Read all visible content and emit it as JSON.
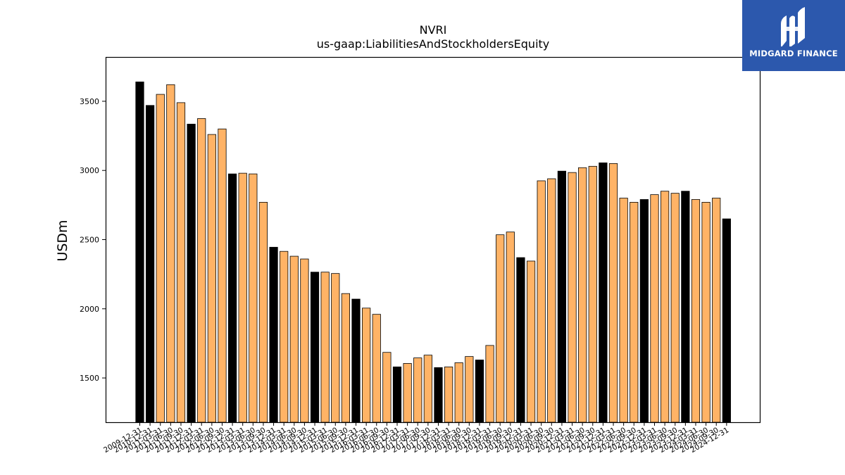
{
  "brand": {
    "name": "MIDGARD FINANCE",
    "bg": "#2c58ad"
  },
  "chart_data": {
    "type": "bar",
    "title": "NVRI",
    "subtitle": "us-gaap:LiabilitiesAndStockholdersEquity",
    "xlabel": "",
    "ylabel": "USDm",
    "ylim": [
      1180,
      3820
    ],
    "yticks": [
      1500,
      2000,
      2500,
      3000,
      3500
    ],
    "grid": false,
    "colors": {
      "annual": "#000000",
      "quarterly": "#ffb366",
      "edge": "#000000"
    },
    "categories": [
      "2009-12-31",
      "2010-12-31",
      "2011-03-31",
      "2011-06-30",
      "2011-09-30",
      "2011-12-31",
      "2012-03-31",
      "2012-06-30",
      "2012-09-30",
      "2012-12-31",
      "2013-03-31",
      "2013-06-30",
      "2013-09-30",
      "2013-12-31",
      "2014-03-31",
      "2014-06-30",
      "2014-09-30",
      "2014-12-31",
      "2015-03-31",
      "2015-06-30",
      "2015-09-30",
      "2015-12-31",
      "2016-03-31",
      "2016-06-30",
      "2016-09-30",
      "2016-12-31",
      "2017-03-31",
      "2017-06-30",
      "2017-09-30",
      "2017-12-31",
      "2018-03-31",
      "2018-06-30",
      "2018-09-30",
      "2018-12-31",
      "2019-03-31",
      "2019-06-30",
      "2019-09-30",
      "2019-12-31",
      "2020-03-31",
      "2020-06-30",
      "2020-09-30",
      "2020-12-31",
      "2021-03-31",
      "2021-06-30",
      "2021-09-30",
      "2021-12-31",
      "2022-03-31",
      "2022-06-30",
      "2022-09-30",
      "2022-12-31",
      "2023-03-31",
      "2023-06-30",
      "2023-09-30",
      "2023-12-31",
      "2024-03-31",
      "2024-06-30",
      "2024-09-30",
      "2024-12-31"
    ],
    "values": [
      3640,
      3470,
      3550,
      3620,
      3490,
      3335,
      3375,
      3260,
      3300,
      2975,
      2980,
      2975,
      2770,
      2445,
      2415,
      2380,
      2360,
      2265,
      2265,
      2255,
      2110,
      2070,
      2005,
      1960,
      1685,
      1580,
      1605,
      1645,
      1665,
      1575,
      1580,
      1610,
      1655,
      1630,
      1735,
      2535,
      2555,
      2370,
      2345,
      2925,
      2940,
      2995,
      2985,
      3020,
      3030,
      3055,
      3050,
      2800,
      2770,
      2790,
      2825,
      2850,
      2835,
      2850,
      2790,
      2770,
      2800,
      2650
    ],
    "annual": [
      true,
      true,
      false,
      false,
      false,
      true,
      false,
      false,
      false,
      true,
      false,
      false,
      false,
      true,
      false,
      false,
      false,
      true,
      false,
      false,
      false,
      true,
      false,
      false,
      false,
      true,
      false,
      false,
      false,
      true,
      false,
      false,
      false,
      true,
      false,
      false,
      false,
      true,
      false,
      false,
      false,
      true,
      false,
      false,
      false,
      true,
      false,
      false,
      false,
      true,
      false,
      false,
      false,
      true,
      false,
      false,
      false,
      true
    ]
  }
}
